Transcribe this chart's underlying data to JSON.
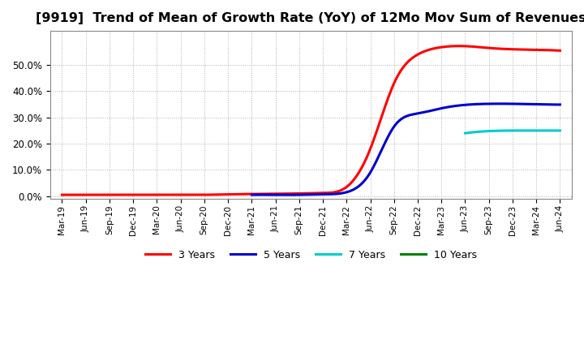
{
  "title": "[9919]  Trend of Mean of Growth Rate (YoY) of 12Mo Mov Sum of Revenues",
  "x_labels": [
    "Mar-19",
    "Jun-19",
    "Sep-19",
    "Dec-19",
    "Mar-20",
    "Jun-20",
    "Sep-20",
    "Dec-20",
    "Mar-21",
    "Jun-21",
    "Sep-21",
    "Dec-21",
    "Mar-22",
    "Jun-22",
    "Sep-22",
    "Dec-22",
    "Mar-23",
    "Jun-23",
    "Sep-23",
    "Dec-23",
    "Mar-24",
    "Jun-24"
  ],
  "series": {
    "3 Years": {
      "color": "#ff0000",
      "data_x": [
        0,
        1,
        2,
        3,
        4,
        5,
        6,
        7,
        8,
        9,
        10,
        11,
        12,
        13,
        14,
        15,
        16,
        17,
        18,
        19,
        20,
        21
      ],
      "data_y": [
        0.005,
        0.005,
        0.005,
        0.005,
        0.005,
        0.005,
        0.005,
        0.007,
        0.008,
        0.009,
        0.01,
        0.012,
        0.035,
        0.18,
        0.43,
        0.54,
        0.568,
        0.572,
        0.565,
        0.56,
        0.558,
        0.555
      ]
    },
    "5 Years": {
      "color": "#0000cc",
      "data_x": [
        8,
        9,
        10,
        11,
        12,
        13,
        14,
        15,
        16,
        17,
        18,
        19,
        20,
        21
      ],
      "data_y": [
        0.005,
        0.005,
        0.005,
        0.007,
        0.015,
        0.09,
        0.265,
        0.315,
        0.335,
        0.348,
        0.352,
        0.352,
        0.35,
        0.349
      ]
    },
    "7 Years": {
      "color": "#00cccc",
      "data_x": [
        17,
        18,
        19,
        20,
        21
      ],
      "data_y": [
        0.24,
        0.248,
        0.25,
        0.25,
        0.25
      ]
    },
    "10 Years": {
      "color": "#008000",
      "data_x": [],
      "data_y": []
    }
  },
  "ylim": [
    -0.01,
    0.63
  ],
  "yticks": [
    0.0,
    0.1,
    0.2,
    0.3,
    0.4,
    0.5
  ],
  "legend_items": [
    "3 Years",
    "5 Years",
    "7 Years",
    "10 Years"
  ],
  "legend_colors": [
    "#ff0000",
    "#0000cc",
    "#00cccc",
    "#008000"
  ],
  "bg_color": "#ffffff",
  "plot_bg_color": "#ffffff",
  "grid_color": "#b0b0b0",
  "title_fontsize": 11.5
}
